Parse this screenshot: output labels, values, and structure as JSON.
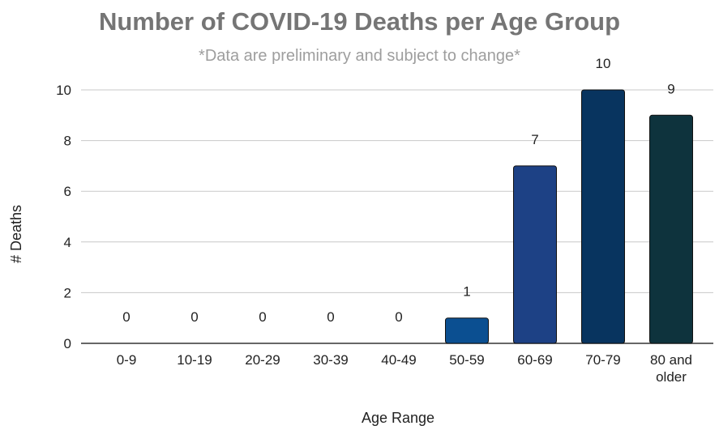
{
  "chart_data": {
    "type": "bar",
    "title": "Number of COVID-19 Deaths per Age Group",
    "subtitle": "*Data are preliminary and subject to change*",
    "xlabel": "Age Range",
    "ylabel": "# Deaths",
    "categories": [
      "0-9",
      "10-19",
      "20-29",
      "30-39",
      "40-49",
      "50-59",
      "60-69",
      "70-79",
      "80 and older"
    ],
    "values": [
      0,
      0,
      0,
      0,
      0,
      1,
      7,
      10,
      9
    ],
    "data_labels": [
      "0",
      "0",
      "0",
      "0",
      "0",
      "1",
      "7",
      "10",
      "9"
    ],
    "ylim": [
      0,
      10
    ],
    "yticks": [
      0,
      2,
      4,
      6,
      8,
      10
    ],
    "grid": true,
    "legend": "none",
    "colors": [
      "#1f4e8c",
      "#1f4e8c",
      "#1f4e8c",
      "#1f4e8c",
      "#1f4e8c",
      "#0b4f91",
      "#1d4185",
      "#08345f",
      "#0e333d"
    ]
  }
}
